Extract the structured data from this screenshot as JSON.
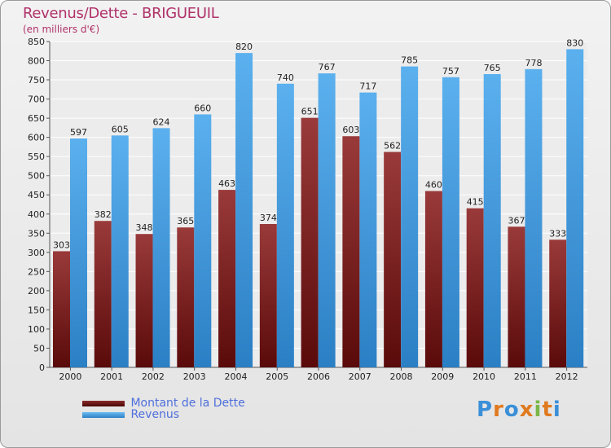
{
  "title": "Revenus/Dette - BRIGUEUIL",
  "subtitle": "(en milliers d'€)",
  "logo": "Proxiti",
  "colors": {
    "dette": "#7a1a1a",
    "revenus": "#4aa3e8",
    "title": "#b0336a",
    "legend_text": "#4f6fdc"
  },
  "chart_data": {
    "type": "bar",
    "categories": [
      "2000",
      "2001",
      "2002",
      "2003",
      "2004",
      "2005",
      "2006",
      "2007",
      "2008",
      "2009",
      "2010",
      "2011",
      "2012"
    ],
    "series": [
      {
        "name": "Montant de la Dette",
        "values": [
          303,
          382,
          348,
          365,
          463,
          374,
          651,
          603,
          562,
          460,
          415,
          367,
          333
        ]
      },
      {
        "name": "Revenus",
        "values": [
          597,
          605,
          624,
          660,
          820,
          740,
          767,
          717,
          785,
          757,
          765,
          778,
          830
        ]
      }
    ],
    "ylim": [
      0,
      850
    ],
    "yticks": [
      0,
      50,
      100,
      150,
      200,
      250,
      300,
      350,
      400,
      450,
      500,
      550,
      600,
      650,
      700,
      750,
      800,
      850
    ],
    "grid": true,
    "legend": "bottom-left"
  }
}
